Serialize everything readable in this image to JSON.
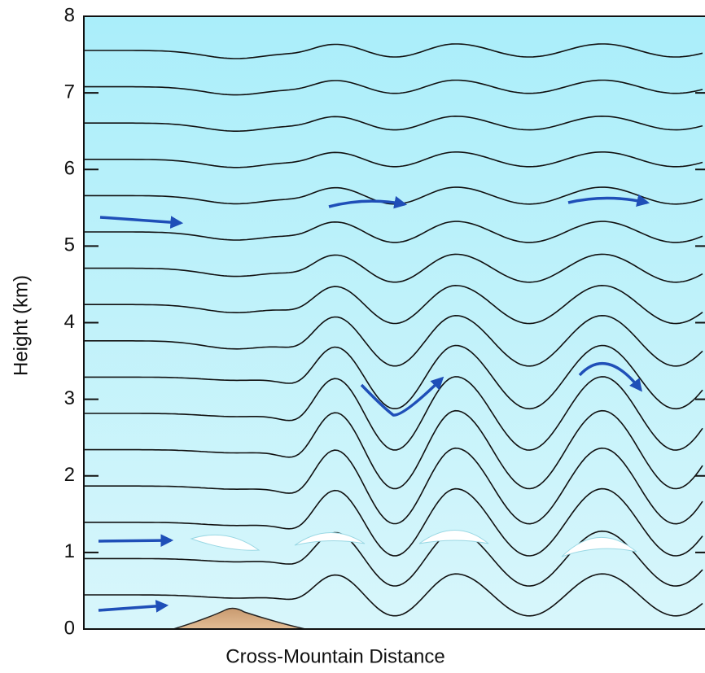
{
  "y_axis": {
    "label": "Height (km)",
    "ticks": [
      "0",
      "1",
      "2",
      "3",
      "4",
      "5",
      "6",
      "7",
      "8"
    ]
  },
  "x_axis": {
    "label": "Cross-Mountain Distance"
  }
}
